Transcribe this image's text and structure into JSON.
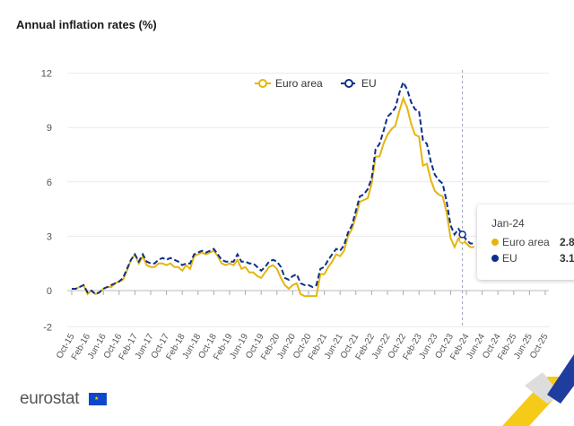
{
  "chart_data": {
    "type": "line",
    "title": "Annual inflation rates (%)",
    "xlabel": "",
    "ylabel": "",
    "ylim": [
      -2,
      12
    ],
    "yticks": [
      "12",
      "9",
      "6",
      "3",
      "0",
      "-2"
    ],
    "ytick_values": [
      12,
      9,
      6,
      3,
      0,
      -2
    ],
    "grid": true,
    "legend": "top-center",
    "xtick_labels": [
      "Oct-15",
      "Feb-16",
      "Jun-16",
      "Oct-16",
      "Feb-17",
      "Jun-17",
      "Oct-17",
      "Feb-18",
      "Jun-18",
      "Oct-18",
      "Feb-19",
      "Jun-19",
      "Oct-19",
      "Feb-20",
      "Jun-20",
      "Oct-20",
      "Feb-21",
      "Jun-21",
      "Oct-21",
      "Feb-22",
      "Jun-22",
      "Oct-22",
      "Feb-23",
      "Jun-23",
      "Oct-23",
      "Feb-24",
      "Jun-24",
      "Oct-24",
      "Feb-25",
      "Jun-25",
      "Oct-25"
    ],
    "x_first_month": "Oct-15",
    "series": [
      {
        "name": "Euro area",
        "color": "#e5b50f",
        "style": "solid",
        "values": [
          0.1,
          0.1,
          0.2,
          0.3,
          -0.2,
          0.0,
          -0.2,
          -0.1,
          0.1,
          0.2,
          0.2,
          0.4,
          0.5,
          0.6,
          1.1,
          1.7,
          2.0,
          1.5,
          1.9,
          1.4,
          1.3,
          1.3,
          1.5,
          1.5,
          1.4,
          1.5,
          1.3,
          1.3,
          1.1,
          1.4,
          1.2,
          1.9,
          2.0,
          2.1,
          2.0,
          2.1,
          2.2,
          1.9,
          1.5,
          1.4,
          1.5,
          1.4,
          1.7,
          1.2,
          1.3,
          1.0,
          1.0,
          0.8,
          0.7,
          1.0,
          1.3,
          1.4,
          1.2,
          0.7,
          0.3,
          0.1,
          0.3,
          0.4,
          -0.2,
          -0.3,
          -0.3,
          -0.3,
          -0.3,
          0.9,
          0.9,
          1.3,
          1.6,
          2.0,
          1.9,
          2.2,
          3.0,
          3.4,
          4.1,
          4.9,
          5.0,
          5.1,
          5.9,
          7.4,
          7.4,
          8.1,
          8.6,
          8.9,
          9.1,
          9.9,
          10.6,
          10.1,
          9.2,
          8.6,
          8.5,
          6.9,
          7.0,
          6.1,
          5.5,
          5.3,
          5.2,
          4.3,
          2.9,
          2.4,
          2.9,
          2.8,
          2.6,
          2.4,
          2.4
        ]
      },
      {
        "name": "EU",
        "color": "#0e2f8a",
        "style": "dashed",
        "values": [
          0.1,
          0.1,
          0.2,
          0.3,
          -0.1,
          0.0,
          -0.2,
          -0.1,
          0.1,
          0.2,
          0.3,
          0.4,
          0.5,
          0.7,
          1.2,
          1.7,
          2.0,
          1.6,
          2.0,
          1.6,
          1.5,
          1.5,
          1.7,
          1.8,
          1.7,
          1.8,
          1.7,
          1.6,
          1.4,
          1.5,
          1.5,
          2.0,
          2.1,
          2.2,
          2.1,
          2.2,
          2.3,
          2.0,
          1.7,
          1.6,
          1.6,
          1.6,
          2.0,
          1.6,
          1.6,
          1.5,
          1.5,
          1.3,
          1.1,
          1.3,
          1.6,
          1.7,
          1.6,
          1.3,
          0.7,
          0.6,
          0.8,
          0.9,
          0.4,
          0.3,
          0.3,
          0.2,
          0.3,
          1.2,
          1.3,
          1.7,
          2.0,
          2.3,
          2.2,
          2.5,
          3.2,
          3.6,
          4.4,
          5.2,
          5.3,
          5.6,
          6.2,
          7.8,
          8.1,
          8.8,
          9.6,
          9.8,
          10.1,
          10.9,
          11.5,
          11.1,
          10.4,
          10.0,
          9.9,
          8.3,
          8.1,
          7.1,
          6.4,
          6.1,
          5.9,
          4.9,
          3.6,
          3.1,
          3.4,
          3.1,
          2.8,
          2.6,
          2.6
        ]
      }
    ],
    "tooltip": {
      "date": "Jan-24",
      "rows": [
        {
          "label": "Euro area",
          "value": "2.8",
          "color": "#e5b50f"
        },
        {
          "label": "EU",
          "value": "3.1",
          "color": "#0e2f8a"
        }
      ]
    }
  },
  "branding": {
    "logo_text": "eurostat"
  }
}
